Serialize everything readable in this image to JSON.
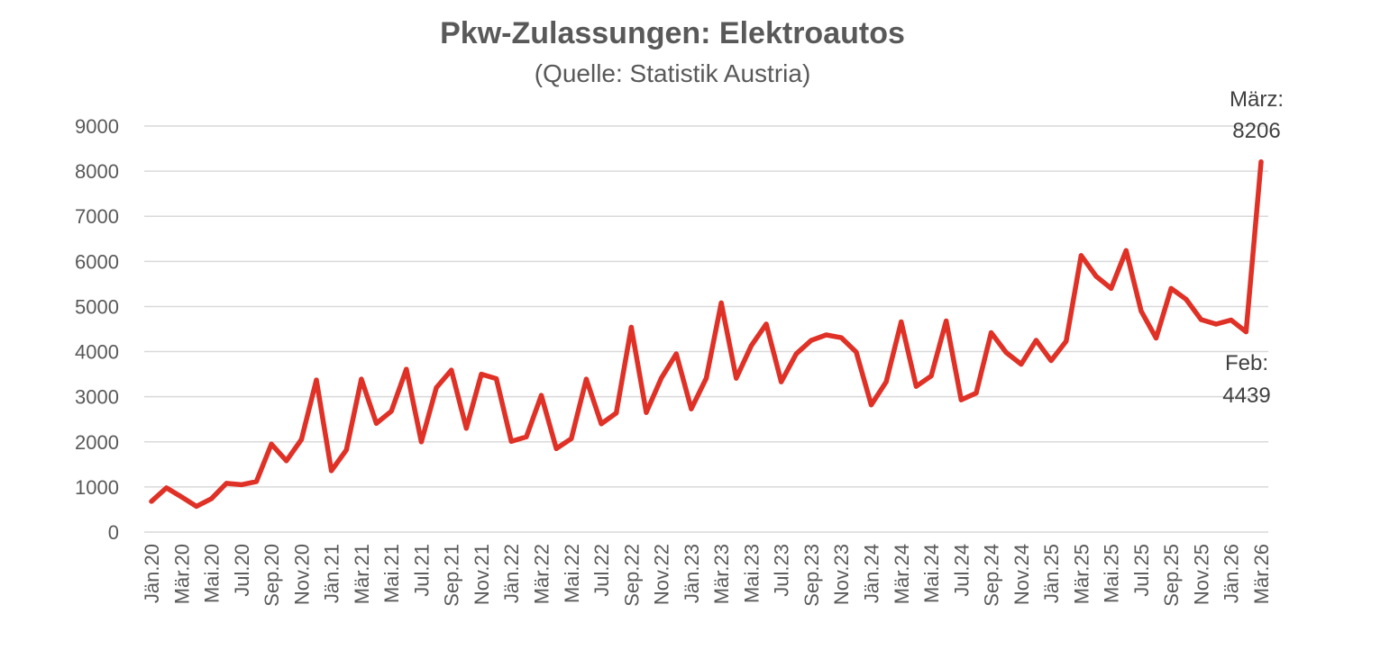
{
  "chart_data": {
    "type": "line",
    "title": "Pkw-Zulassungen: Elektroautos",
    "subtitle": "(Quelle: Statistik Austria)",
    "xlabel": "",
    "ylabel": "",
    "ylim": [
      0,
      9000
    ],
    "yticks": [
      0,
      1000,
      2000,
      3000,
      4000,
      5000,
      6000,
      7000,
      8000,
      9000
    ],
    "grid": true,
    "legend": "none",
    "line_color": "#e03127",
    "x_tick_labels": [
      "Jän.20",
      "Mär.20",
      "Mai.20",
      "Jul.20",
      "Sep.20",
      "Nov.20",
      "Jän.21",
      "Mär.21",
      "Mai.21",
      "Jul.21",
      "Sep.21",
      "Nov.21",
      "Jän.22",
      "Mär.22",
      "Mai.22",
      "Jul.22",
      "Sep.22",
      "Nov.22",
      "Jän.23",
      "Mär.23",
      "Mai.23",
      "Jul.23",
      "Sep.23",
      "Nov.23",
      "Jän.24",
      "Mär.24",
      "Mai.24",
      "Jul.24",
      "Sep.24",
      "Nov.24",
      "Jän.25",
      "Mär.25",
      "Mai.25",
      "Jul.25",
      "Sep.25",
      "Nov.25",
      "Jän.26",
      "Mär.26"
    ],
    "x": [
      "Jän.20",
      "Feb.20",
      "Mär.20",
      "Apr.20",
      "Mai.20",
      "Jun.20",
      "Jul.20",
      "Aug.20",
      "Sep.20",
      "Okt.20",
      "Nov.20",
      "Dez.20",
      "Jän.21",
      "Feb.21",
      "Mär.21",
      "Apr.21",
      "Mai.21",
      "Jun.21",
      "Jul.21",
      "Aug.21",
      "Sep.21",
      "Okt.21",
      "Nov.21",
      "Dez.21",
      "Jän.22",
      "Feb.22",
      "Mär.22",
      "Apr.22",
      "Mai.22",
      "Jun.22",
      "Jul.22",
      "Aug.22",
      "Sep.22",
      "Okt.22",
      "Nov.22",
      "Dez.22",
      "Jän.23",
      "Feb.23",
      "Mär.23",
      "Apr.23",
      "Mai.23",
      "Jun.23",
      "Jul.23",
      "Aug.23",
      "Sep.23",
      "Okt.23",
      "Nov.23",
      "Dez.23",
      "Jän.24",
      "Feb.24",
      "Mär.24",
      "Apr.24",
      "Mai.24",
      "Jun.24",
      "Jul.24",
      "Aug.24",
      "Sep.24",
      "Okt.24",
      "Nov.24",
      "Dez.24",
      "Jän.25",
      "Feb.25",
      "Mär.25",
      "Apr.25",
      "Mai.25",
      "Jun.25",
      "Jul.25",
      "Aug.25",
      "Sep.25",
      "Okt.25",
      "Nov.25",
      "Dez.25",
      "Jän.26",
      "Feb.26",
      "Mär.26"
    ],
    "series": [
      {
        "values": [
          680,
          980,
          780,
          570,
          740,
          1080,
          1050,
          1120,
          1950,
          1580,
          2050,
          3370,
          1360,
          1820,
          3390,
          2410,
          2680,
          3610,
          2000,
          3200,
          3590,
          2300,
          3500,
          3400,
          2010,
          2110,
          3030,
          1850,
          2070,
          3390,
          2400,
          2640,
          4540,
          2650,
          3410,
          3950,
          2730,
          3410,
          5080,
          3410,
          4130,
          4610,
          3330,
          3950,
          4250,
          4370,
          4310,
          3990,
          2820,
          3330,
          4660,
          3230,
          3460,
          4680,
          2930,
          3080,
          4420,
          3980,
          3720,
          4250,
          3800,
          4230,
          6130,
          5670,
          5400,
          6240,
          4900,
          4300,
          5400,
          5160,
          4710,
          4610,
          4700,
          4439,
          8206
        ]
      }
    ],
    "annotations": [
      {
        "label": "März:",
        "value": "8206"
      },
      {
        "label": "Feb:",
        "value": "4439"
      }
    ]
  }
}
